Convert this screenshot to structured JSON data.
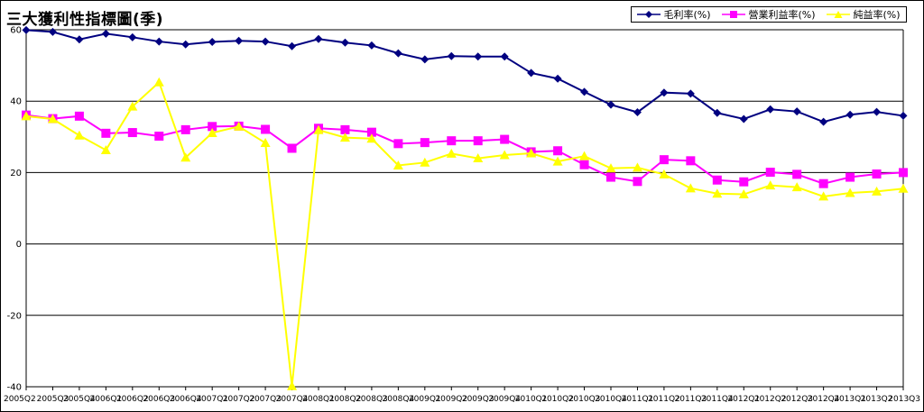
{
  "chart_data": {
    "type": "line",
    "title": "三大獲利性指標圖(季)",
    "categories": [
      "2005Q2",
      "2005Q3",
      "2005Q4",
      "2006Q1",
      "2006Q2",
      "2006Q3",
      "2006Q4",
      "2007Q1",
      "2007Q2",
      "2007Q3",
      "2007Q4",
      "2008Q1",
      "2008Q2",
      "2008Q3",
      "2008Q4",
      "2009Q1",
      "2009Q2",
      "2009Q3",
      "2009Q4",
      "2010Q1",
      "2010Q2",
      "2010Q3",
      "2010Q4",
      "2011Q1",
      "2011Q2",
      "2011Q3",
      "2011Q4",
      "2012Q1",
      "2012Q2",
      "2012Q3",
      "2012Q4",
      "2013Q1",
      "2013Q2",
      "2013Q3"
    ],
    "ylim": [
      -40,
      60
    ],
    "yticks": [
      -40,
      -20,
      0,
      20,
      40,
      60
    ],
    "legend_position": "top-right",
    "grid": "horizontal",
    "series": [
      {
        "name": "毛利率(%)",
        "color": "#000080",
        "marker": "diamond",
        "values": [
          59.9,
          59.4,
          57.3,
          58.9,
          57.9,
          56.7,
          55.9,
          56.6,
          56.9,
          56.7,
          55.4,
          57.4,
          56.4,
          55.6,
          53.4,
          51.7,
          52.6,
          52.5,
          52.5,
          47.9,
          46.3,
          42.6,
          39.0,
          36.9,
          42.4,
          42.1,
          36.7,
          35.0,
          37.7,
          37.1,
          34.2,
          36.2,
          37.0,
          35.9
        ]
      },
      {
        "name": "營業利益率(%)",
        "color": "#FF00FF",
        "marker": "square",
        "values": [
          36.1,
          35.1,
          35.8,
          31.0,
          31.2,
          30.2,
          32.0,
          32.9,
          33.0,
          32.1,
          26.8,
          32.4,
          32.0,
          31.3,
          28.1,
          28.4,
          28.9,
          28.9,
          29.3,
          25.8,
          26.1,
          22.2,
          18.7,
          17.5,
          23.6,
          23.3,
          17.9,
          17.4,
          20.1,
          19.5,
          16.9,
          18.7,
          19.6,
          20.0
        ]
      },
      {
        "name": "純益率(%)",
        "color": "#FFFF00",
        "marker": "triangle",
        "values": [
          35.8,
          35.0,
          30.4,
          26.3,
          38.5,
          45.3,
          24.2,
          31.1,
          32.9,
          28.3,
          -39.8,
          31.9,
          29.8,
          29.5,
          22.0,
          22.8,
          25.3,
          24.0,
          24.9,
          25.4,
          23.1,
          24.6,
          21.2,
          21.4,
          19.5,
          15.6,
          14.1,
          13.9,
          16.4,
          15.9,
          13.3,
          14.3,
          14.7,
          15.5
        ]
      }
    ]
  }
}
